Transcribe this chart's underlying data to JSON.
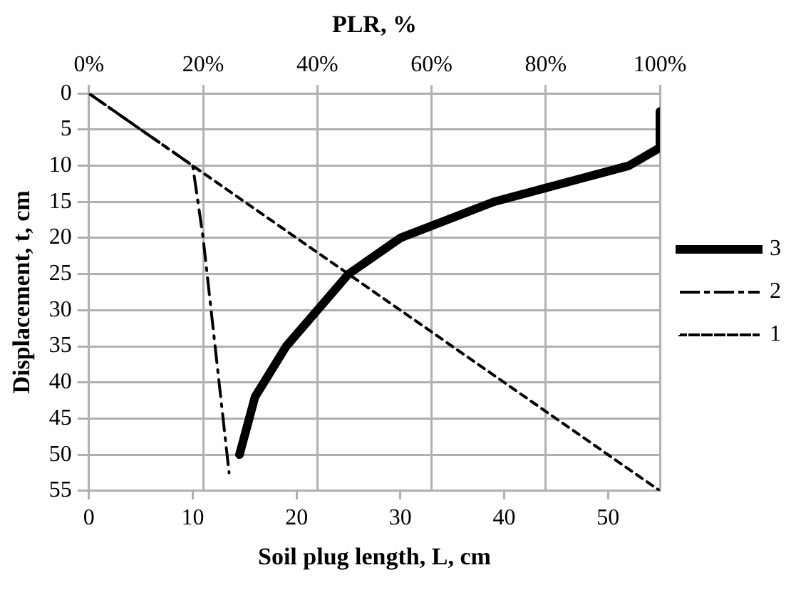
{
  "chart_data": {
    "type": "line",
    "xlabel": "Soil plug length, L, cm",
    "ylabel": "Displacement, t, cm",
    "x2label": "PLR, %",
    "xlim": [
      0,
      55
    ],
    "xticks": [
      0,
      10,
      20,
      30,
      40,
      50
    ],
    "x2lim": [
      0,
      100
    ],
    "x2ticks": [
      {
        "value": 0,
        "label": "0%"
      },
      {
        "value": 20,
        "label": "20%"
      },
      {
        "value": 40,
        "label": "40%"
      },
      {
        "value": 60,
        "label": "60%"
      },
      {
        "value": 80,
        "label": "80%"
      },
      {
        "value": 100,
        "label": "100%"
      }
    ],
    "ylim": [
      55,
      0
    ],
    "yticks": [
      0,
      5,
      10,
      15,
      20,
      25,
      30,
      35,
      40,
      45,
      50,
      55
    ],
    "grid": true,
    "legend": "right",
    "marker": "none",
    "series": [
      {
        "name": "3",
        "color": "#000000",
        "line_style": "solid",
        "x": [
          14.5,
          16,
          19,
          22,
          25,
          30,
          39,
          52,
          55,
          55
        ],
        "values": [
          50,
          42,
          35,
          30,
          25,
          20,
          15,
          10,
          7.5,
          2.5
        ]
      },
      {
        "name": "2",
        "color": "#000000",
        "line_style": "dashdot",
        "x": [
          0,
          10,
          11,
          13.5
        ],
        "values": [
          0,
          10,
          20,
          52.5
        ]
      },
      {
        "name": "1",
        "color": "#000000",
        "line_style": "dashed",
        "x": [
          0,
          55
        ],
        "values": [
          0,
          55
        ]
      }
    ]
  }
}
